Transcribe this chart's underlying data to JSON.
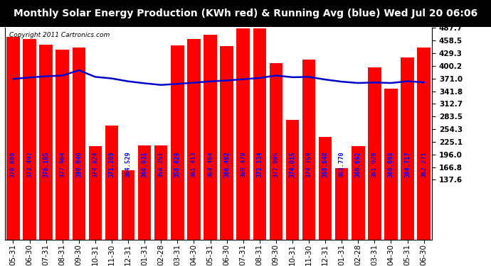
{
  "title": "Monthly Solar Energy Production (KWh red) & Running Avg (blue) Wed Jul 20 06:06",
  "copyright": "Copyright 2011 Cartronics.com",
  "categories": [
    "05-31",
    "06-30",
    "07-31",
    "08-31",
    "09-30",
    "10-31",
    "11-30",
    "12-31",
    "01-31",
    "02-28",
    "03-31",
    "04-30",
    "05-31",
    "06-30",
    "07-31",
    "08-31",
    "09-30",
    "10-31",
    "11-30",
    "12-31",
    "01-31",
    "02-28",
    "03-31",
    "04-30",
    "05-31",
    "06-30"
  ],
  "bar_values": [
    467,
    462,
    449,
    437,
    443,
    215,
    263,
    160,
    217,
    216,
    447,
    462,
    472,
    445,
    487,
    487,
    407,
    275,
    415,
    237,
    164,
    215,
    396,
    348,
    419,
    443
  ],
  "running_avg": [
    370.08,
    373.492,
    376.185,
    377.964,
    390.04,
    374.824,
    371.209,
    364.529,
    360.031,
    356.251,
    358.629,
    361.413,
    364.464,
    366.462,
    369.47,
    372.334,
    377.985,
    374.015,
    374.759,
    368.648,
    363.77,
    360.692,
    361.928,
    360.688,
    364.717,
    362.271
  ],
  "bar_color": "#ff0000",
  "line_color": "#0000cc",
  "background_color": "#ffffff",
  "title_bg_color": "#000000",
  "title_text_color": "#ffffff",
  "grid_color": "#ffffff",
  "ylim": [
    137.6,
    487.7
  ],
  "yticks": [
    137.6,
    166.8,
    196.0,
    225.1,
    254.3,
    283.5,
    312.7,
    341.8,
    371.0,
    400.2,
    429.3,
    458.5,
    487.7
  ],
  "title_fontsize": 10,
  "tick_fontsize": 7.5,
  "bar_label_fontsize": 6.2,
  "copyright_fontsize": 6.5
}
